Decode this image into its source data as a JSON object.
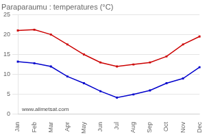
{
  "chart_data": {
    "type": "line",
    "title": "Paraparaumu : temperatures (°C)",
    "categories": [
      "Jan",
      "Feb",
      "Mar",
      "Apr",
      "May",
      "Jun",
      "Jul",
      "Aug",
      "Sep",
      "Oct",
      "Nov",
      "Dec"
    ],
    "series": [
      {
        "color": "#cc0000",
        "marker": "square",
        "line_style": "solid",
        "values": [
          21.0,
          21.2,
          20.0,
          17.5,
          15.0,
          13.0,
          12.0,
          12.5,
          13.0,
          14.5,
          17.5,
          19.5
        ]
      },
      {
        "color": "#0000cc",
        "marker": "square",
        "line_style": "solid",
        "values": [
          13.2,
          12.8,
          12.0,
          9.5,
          7.8,
          5.8,
          4.2,
          5.0,
          6.0,
          7.8,
          9.0,
          11.8
        ]
      }
    ],
    "ylim": [
      0,
      25
    ],
    "yticks": [
      0,
      5,
      10,
      15,
      20,
      25
    ],
    "grid": true,
    "annotations": [
      "www.allmetsat.com"
    ]
  }
}
